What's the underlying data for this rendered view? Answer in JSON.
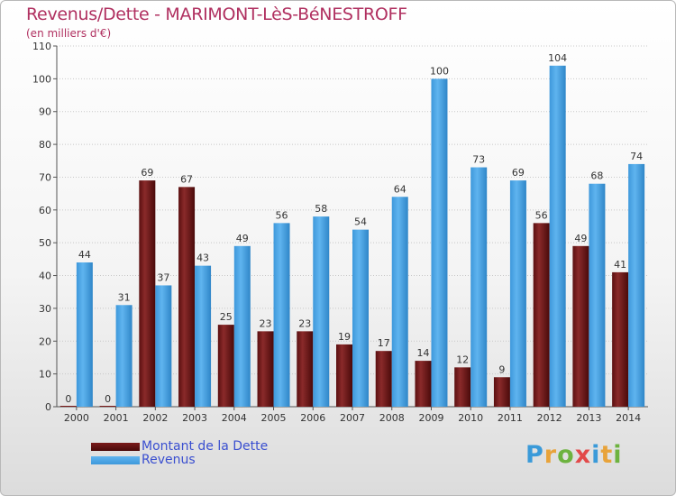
{
  "header": {
    "title": "Revenus/Dette - MARIMONT-LèS-BéNESTROFF",
    "subtitle": "(en milliers d'€)"
  },
  "logo": {
    "letters": [
      "P",
      "r",
      "o",
      "x",
      "i",
      "t",
      "i"
    ],
    "colors": [
      "#3a9ad9",
      "#e8a33a",
      "#6db33f",
      "#e24a4a",
      "#3a9ad9",
      "#e8a33a",
      "#6db33f"
    ]
  },
  "chart_data": {
    "type": "bar",
    "title": "Revenus/Dette - MARIMONT-LèS-BéNESTROFF",
    "subtitle": "(en milliers d'€)",
    "categories": [
      "2000",
      "2001",
      "2002",
      "2003",
      "2004",
      "2005",
      "2006",
      "2007",
      "2008",
      "2009",
      "2010",
      "2011",
      "2012",
      "2013",
      "2014"
    ],
    "series": [
      {
        "name": "Montant de la Dette",
        "color": "#7a1a1a",
        "values": [
          0,
          0,
          69,
          67,
          25,
          23,
          23,
          19,
          17,
          14,
          12,
          9,
          56,
          49,
          41
        ]
      },
      {
        "name": "Revenus",
        "color": "#4da6e8",
        "values": [
          44,
          31,
          37,
          43,
          49,
          56,
          58,
          54,
          64,
          100,
          73,
          69,
          104,
          68,
          74
        ]
      }
    ],
    "ylim": [
      0,
      110
    ],
    "yticks": [
      0,
      10,
      20,
      30,
      40,
      50,
      60,
      70,
      80,
      90,
      100,
      110
    ],
    "grid": true,
    "legend": "bottom-left"
  }
}
